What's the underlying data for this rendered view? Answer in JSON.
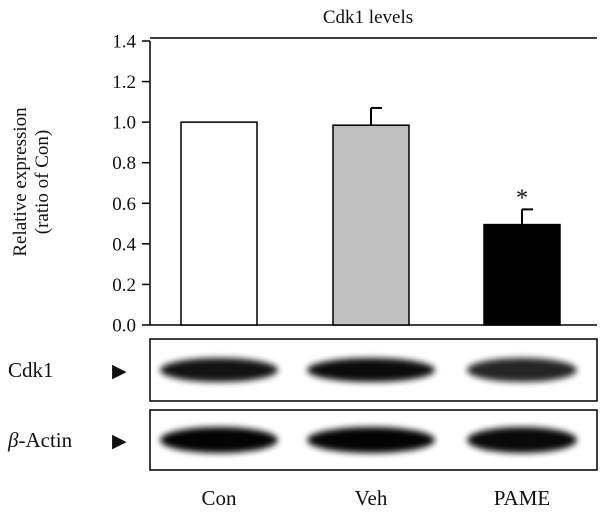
{
  "chart_data": {
    "type": "bar",
    "title": "Cdk1 levels",
    "ylabel_lines": [
      "Relative expression",
      "(ratio of Con)"
    ],
    "ylim": [
      0,
      1.4
    ],
    "yticks": [
      "0.0",
      "0.2",
      "0.4",
      "0.6",
      "0.8",
      "1.0",
      "1.2",
      "1.4"
    ],
    "categories": [
      "Con",
      "Veh",
      "PAME"
    ],
    "values": [
      1.0,
      0.985,
      0.495
    ],
    "errors": [
      0,
      0.085,
      0.075
    ],
    "bar_colors": [
      "#ffffff",
      "#c0c0c0",
      "#000000"
    ],
    "significance": [
      "",
      "",
      "*"
    ],
    "grid": false
  },
  "blots": [
    {
      "label_prefix": "",
      "label_main": "Cdk1",
      "arrow": "▶",
      "band_intensity": [
        0.92,
        0.95,
        0.85
      ]
    },
    {
      "label_prefix": "β",
      "label_main": "-Actin",
      "arrow": "▶",
      "band_intensity": [
        0.98,
        0.98,
        0.96
      ]
    }
  ]
}
